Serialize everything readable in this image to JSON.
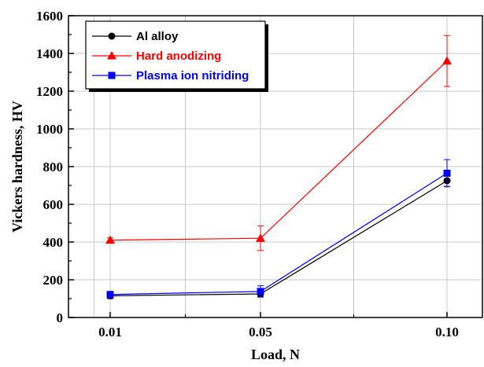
{
  "chart_data": {
    "type": "line",
    "xlabel": "Load, N",
    "ylabel": "Vickers hardness, HV",
    "categories": [
      "0.01",
      "0.05",
      "0.10"
    ],
    "x": [
      0.01,
      0.05,
      0.1
    ],
    "ylim": [
      0,
      1600
    ],
    "yticks": [
      "0",
      "200",
      "400",
      "600",
      "800",
      "1000",
      "1200",
      "1400",
      "1600"
    ],
    "grid": true,
    "legend_position": "top-left",
    "series": [
      {
        "name": "Al alloy",
        "color": "#000000",
        "marker": "circle",
        "values": [
          115,
          125,
          725
        ],
        "errors": [
          15,
          15,
          30
        ]
      },
      {
        "name": "Hard anodizing",
        "color": "#ff0000",
        "marker": "triangle",
        "values": [
          410,
          420,
          1360
        ],
        "errors": [
          12,
          65,
          135
        ]
      },
      {
        "name": "Plasma ion nitriding",
        "color": "#0000ff",
        "marker": "square",
        "values": [
          122,
          138,
          765
        ],
        "errors": [
          10,
          30,
          72
        ]
      }
    ]
  }
}
